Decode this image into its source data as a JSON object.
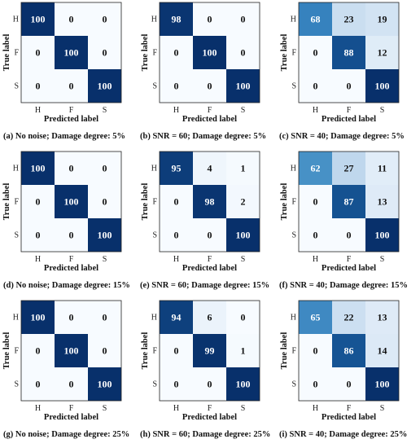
{
  "colors": {
    "low": "#f7fbff",
    "high": "#08306b",
    "light_text": "#ffffff",
    "dark_text": "#111111"
  },
  "chart_data": [
    {
      "type": "heatmap",
      "caption": "(a) No noise; Damage degree: 5%",
      "xlabel": "Predicted label",
      "ylabel": "True label",
      "x_categories": [
        "H",
        "F",
        "S"
      ],
      "y_categories": [
        "H",
        "F",
        "S"
      ],
      "values": [
        [
          100,
          0,
          0
        ],
        [
          0,
          100,
          0
        ],
        [
          0,
          0,
          100
        ]
      ]
    },
    {
      "type": "heatmap",
      "caption": "(b) SNR = 60; Damage degree: 5%",
      "xlabel": "Predicted label",
      "ylabel": "True label",
      "x_categories": [
        "H",
        "F",
        "S"
      ],
      "y_categories": [
        "H",
        "F",
        "S"
      ],
      "values": [
        [
          98,
          0,
          0
        ],
        [
          0,
          100,
          0
        ],
        [
          0,
          0,
          100
        ]
      ]
    },
    {
      "type": "heatmap",
      "caption": "(c) SNR = 40; Damage degree: 5%",
      "xlabel": "Predicted label",
      "ylabel": "True label",
      "x_categories": [
        "H",
        "F",
        "S"
      ],
      "y_categories": [
        "H",
        "F",
        "S"
      ],
      "values": [
        [
          68,
          23,
          19
        ],
        [
          0,
          88,
          12
        ],
        [
          0,
          0,
          100
        ]
      ]
    },
    {
      "type": "heatmap",
      "caption": "(d) No noise; Damage degree: 15%",
      "xlabel": "Predicted label",
      "ylabel": "True label",
      "x_categories": [
        "H",
        "F",
        "S"
      ],
      "y_categories": [
        "H",
        "F",
        "S"
      ],
      "values": [
        [
          100,
          0,
          0
        ],
        [
          0,
          100,
          0
        ],
        [
          0,
          0,
          100
        ]
      ]
    },
    {
      "type": "heatmap",
      "caption": "(e) SNR = 60; Damage degree: 15%",
      "xlabel": "Predicted label",
      "ylabel": "True label",
      "x_categories": [
        "H",
        "F",
        "S"
      ],
      "y_categories": [
        "H",
        "F",
        "S"
      ],
      "values": [
        [
          95,
          4,
          1
        ],
        [
          0,
          98,
          2
        ],
        [
          0,
          0,
          100
        ]
      ]
    },
    {
      "type": "heatmap",
      "caption": "(f) SNR = 40; Damage degree: 15%",
      "xlabel": "Predicted label",
      "ylabel": "True label",
      "x_categories": [
        "H",
        "F",
        "S"
      ],
      "y_categories": [
        "H",
        "F",
        "S"
      ],
      "values": [
        [
          62,
          27,
          11
        ],
        [
          0,
          87,
          13
        ],
        [
          0,
          0,
          100
        ]
      ]
    },
    {
      "type": "heatmap",
      "caption": "(g) No noise; Damage degree: 25%",
      "xlabel": "Predicted label",
      "ylabel": "True label",
      "x_categories": [
        "H",
        "F",
        "S"
      ],
      "y_categories": [
        "H",
        "F",
        "S"
      ],
      "values": [
        [
          100,
          0,
          0
        ],
        [
          0,
          100,
          0
        ],
        [
          0,
          0,
          100
        ]
      ]
    },
    {
      "type": "heatmap",
      "caption": "(h) SNR = 60; Damage degree: 25%",
      "xlabel": "Predicted label",
      "ylabel": "True label",
      "x_categories": [
        "H",
        "F",
        "S"
      ],
      "y_categories": [
        "H",
        "F",
        "S"
      ],
      "values": [
        [
          94,
          6,
          0
        ],
        [
          0,
          99,
          1
        ],
        [
          0,
          0,
          100
        ]
      ]
    },
    {
      "type": "heatmap",
      "caption": "(i) SNR = 40; Damage degree: 25%",
      "xlabel": "Predicted label",
      "ylabel": "True label",
      "x_categories": [
        "H",
        "F",
        "S"
      ],
      "y_categories": [
        "H",
        "F",
        "S"
      ],
      "values": [
        [
          65,
          22,
          13
        ],
        [
          0,
          86,
          14
        ],
        [
          0,
          0,
          100
        ]
      ]
    }
  ]
}
